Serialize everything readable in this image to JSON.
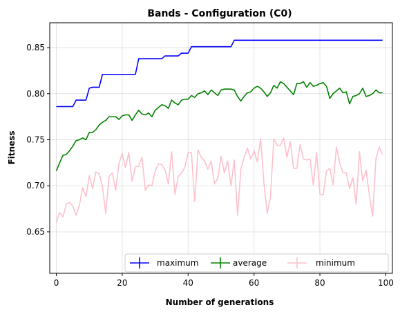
{
  "chart_data": {
    "type": "line",
    "title": "Bands - Configuration (C0)",
    "xlabel": "Number of generations",
    "ylabel": "Fitness",
    "xlim": [
      -2,
      102
    ],
    "ylim": [
      0.605,
      0.877
    ],
    "xticks": [
      0,
      20,
      40,
      60,
      80,
      100
    ],
    "yticks": [
      0.65,
      0.7,
      0.75,
      0.8,
      0.85
    ],
    "ytick_labels": [
      "0.65",
      "0.70",
      "0.75",
      "0.80",
      "0.85"
    ],
    "grid": true,
    "legend_position": "lower-right",
    "x": [
      0,
      1,
      2,
      3,
      4,
      5,
      6,
      7,
      8,
      9,
      10,
      11,
      12,
      13,
      14,
      15,
      16,
      17,
      18,
      19,
      20,
      21,
      22,
      23,
      24,
      25,
      26,
      27,
      28,
      29,
      30,
      31,
      32,
      33,
      34,
      35,
      36,
      37,
      38,
      39,
      40,
      41,
      42,
      43,
      44,
      45,
      46,
      47,
      48,
      49,
      50,
      51,
      52,
      53,
      54,
      55,
      56,
      57,
      58,
      59,
      60,
      61,
      62,
      63,
      64,
      65,
      66,
      67,
      68,
      69,
      70,
      71,
      72,
      73,
      74,
      75,
      76,
      77,
      78,
      79,
      80,
      81,
      82,
      83,
      84,
      85,
      86,
      87,
      88,
      89,
      90,
      91,
      92,
      93,
      94,
      95,
      96,
      97,
      98,
      99
    ],
    "series": [
      {
        "name": "maximum",
        "color": "#0000ff",
        "values": [
          0.786,
          0.786,
          0.786,
          0.786,
          0.786,
          0.786,
          0.793,
          0.793,
          0.793,
          0.793,
          0.806,
          0.807,
          0.807,
          0.807,
          0.821,
          0.821,
          0.821,
          0.821,
          0.821,
          0.821,
          0.821,
          0.821,
          0.821,
          0.821,
          0.821,
          0.838,
          0.838,
          0.838,
          0.838,
          0.838,
          0.838,
          0.838,
          0.838,
          0.841,
          0.841,
          0.841,
          0.841,
          0.841,
          0.844,
          0.844,
          0.844,
          0.851,
          0.851,
          0.851,
          0.851,
          0.851,
          0.851,
          0.851,
          0.851,
          0.851,
          0.851,
          0.851,
          0.851,
          0.851,
          0.858,
          0.858,
          0.858,
          0.858,
          0.858,
          0.858,
          0.858,
          0.858,
          0.858,
          0.858,
          0.858,
          0.858,
          0.858,
          0.858,
          0.858,
          0.858,
          0.858,
          0.858,
          0.858,
          0.858,
          0.858,
          0.858,
          0.858,
          0.858,
          0.858,
          0.858,
          0.858,
          0.858,
          0.858,
          0.858,
          0.858,
          0.858,
          0.858,
          0.858,
          0.858,
          0.858,
          0.858,
          0.858,
          0.858,
          0.858,
          0.858,
          0.858,
          0.858,
          0.858,
          0.858,
          0.858
        ]
      },
      {
        "name": "average",
        "color": "#008000",
        "values": [
          0.716,
          0.725,
          0.733,
          0.734,
          0.738,
          0.743,
          0.749,
          0.75,
          0.752,
          0.75,
          0.758,
          0.758,
          0.761,
          0.766,
          0.769,
          0.771,
          0.775,
          0.775,
          0.775,
          0.772,
          0.776,
          0.777,
          0.777,
          0.771,
          0.777,
          0.782,
          0.778,
          0.777,
          0.779,
          0.775,
          0.782,
          0.785,
          0.788,
          0.787,
          0.784,
          0.793,
          0.79,
          0.788,
          0.793,
          0.794,
          0.794,
          0.798,
          0.796,
          0.8,
          0.801,
          0.803,
          0.799,
          0.804,
          0.801,
          0.798,
          0.804,
          0.805,
          0.805,
          0.805,
          0.804,
          0.797,
          0.792,
          0.797,
          0.801,
          0.802,
          0.806,
          0.808,
          0.806,
          0.802,
          0.797,
          0.801,
          0.809,
          0.806,
          0.813,
          0.811,
          0.807,
          0.803,
          0.799,
          0.811,
          0.811,
          0.813,
          0.807,
          0.812,
          0.808,
          0.809,
          0.811,
          0.812,
          0.808,
          0.795,
          0.8,
          0.803,
          0.806,
          0.801,
          0.802,
          0.789,
          0.797,
          0.798,
          0.8,
          0.806,
          0.797,
          0.798,
          0.8,
          0.804,
          0.801,
          0.801
        ]
      },
      {
        "name": "minimum",
        "color": "#ffc0cb",
        "values": [
          0.66,
          0.671,
          0.666,
          0.68,
          0.682,
          0.678,
          0.668,
          0.679,
          0.698,
          0.688,
          0.711,
          0.697,
          0.715,
          0.713,
          0.699,
          0.67,
          0.71,
          0.714,
          0.695,
          0.724,
          0.735,
          0.72,
          0.736,
          0.705,
          0.721,
          0.721,
          0.731,
          0.695,
          0.701,
          0.7,
          0.716,
          0.724,
          0.723,
          0.717,
          0.702,
          0.737,
          0.691,
          0.71,
          0.714,
          0.72,
          0.736,
          0.736,
          0.683,
          0.739,
          0.731,
          0.727,
          0.718,
          0.727,
          0.702,
          0.708,
          0.732,
          0.714,
          0.727,
          0.7,
          0.728,
          0.668,
          0.718,
          0.731,
          0.741,
          0.729,
          0.738,
          0.726,
          0.751,
          0.703,
          0.67,
          0.688,
          0.751,
          0.744,
          0.744,
          0.752,
          0.731,
          0.748,
          0.719,
          0.719,
          0.745,
          0.729,
          0.728,
          0.729,
          0.701,
          0.736,
          0.691,
          0.69,
          0.716,
          0.719,
          0.701,
          0.742,
          0.725,
          0.714,
          0.714,
          0.697,
          0.709,
          0.68,
          0.737,
          0.705,
          0.717,
          0.69,
          0.667,
          0.729,
          0.742,
          0.734
        ]
      }
    ]
  }
}
